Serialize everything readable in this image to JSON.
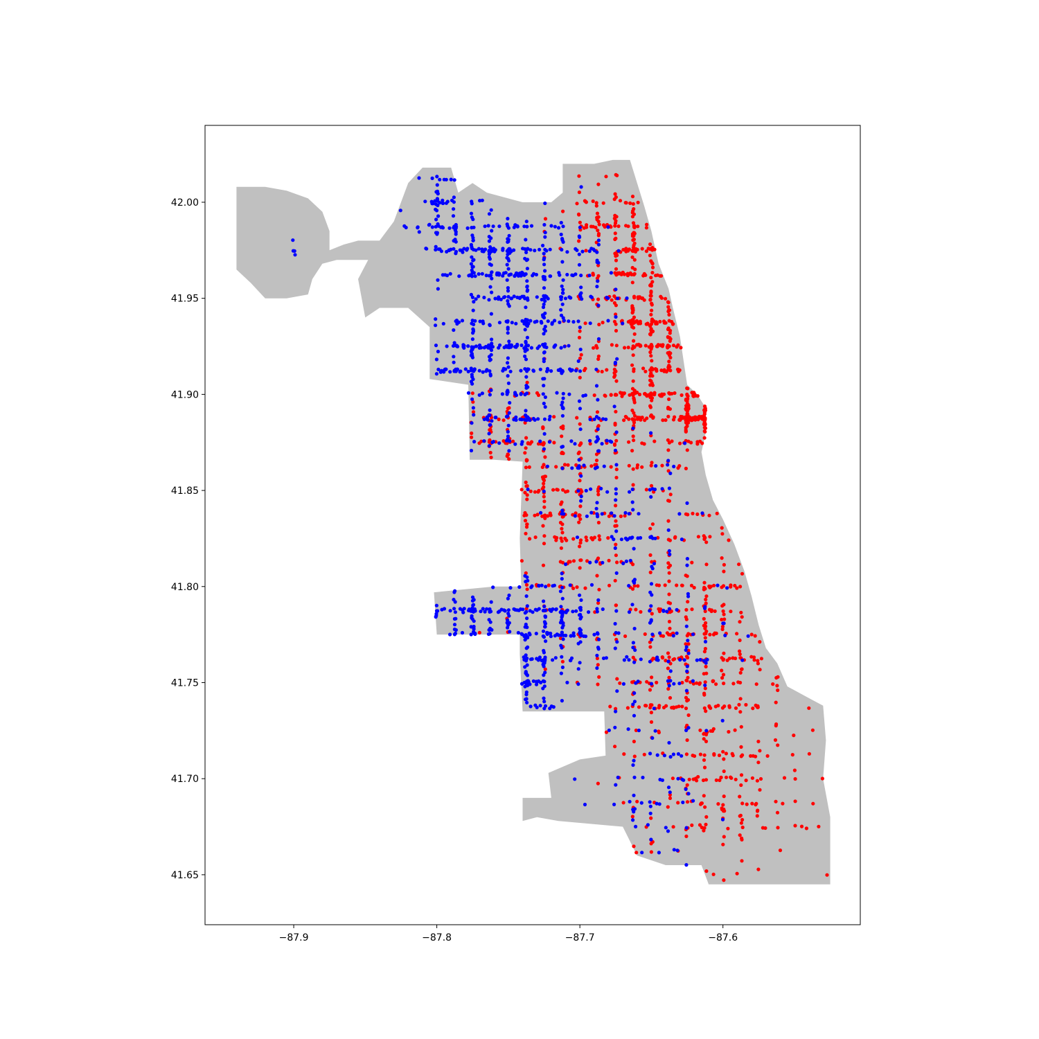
{
  "chart_data": {
    "type": "scatter",
    "title": "",
    "xlabel": "",
    "ylabel": "",
    "xlim": [
      -87.962,
      -87.504
    ],
    "ylim": [
      41.624,
      42.04
    ],
    "xticks": [
      -87.9,
      -87.8,
      -87.7,
      -87.6
    ],
    "xtick_labels": [
      "−87.9",
      "−87.8",
      "−87.7",
      "−87.6"
    ],
    "yticks": [
      41.65,
      41.7,
      41.75,
      41.8,
      41.85,
      41.9,
      41.95,
      42.0
    ],
    "ytick_labels": [
      "41.65",
      "41.70",
      "41.75",
      "41.80",
      "41.85",
      "41.90",
      "41.95",
      "42.00"
    ],
    "grid": false,
    "legend": "none",
    "basemap": {
      "fill_color": "#c0c0c0",
      "outline_lonlat": [
        [
          -87.94,
          42.0
        ],
        [
          -87.94,
          42.008
        ],
        [
          -87.92,
          42.008
        ],
        [
          -87.905,
          42.006
        ],
        [
          -87.89,
          42.002
        ],
        [
          -87.88,
          41.995
        ],
        [
          -87.875,
          41.985
        ],
        [
          -87.875,
          41.975
        ],
        [
          -87.865,
          41.978
        ],
        [
          -87.855,
          41.98
        ],
        [
          -87.84,
          41.98
        ],
        [
          -87.83,
          41.99
        ],
        [
          -87.82,
          42.01
        ],
        [
          -87.81,
          42.018
        ],
        [
          -87.79,
          42.018
        ],
        [
          -87.785,
          42.005
        ],
        [
          -87.775,
          42.01
        ],
        [
          -87.765,
          42.005
        ],
        [
          -87.74,
          42.0
        ],
        [
          -87.72,
          42.0
        ],
        [
          -87.712,
          42.005
        ],
        [
          -87.712,
          42.02
        ],
        [
          -87.69,
          42.02
        ],
        [
          -87.677,
          42.022
        ],
        [
          -87.665,
          42.022
        ],
        [
          -87.66,
          42.01
        ],
        [
          -87.655,
          41.998
        ],
        [
          -87.65,
          41.985
        ],
        [
          -87.645,
          41.968
        ],
        [
          -87.638,
          41.955
        ],
        [
          -87.635,
          41.945
        ],
        [
          -87.63,
          41.93
        ],
        [
          -87.627,
          41.915
        ],
        [
          -87.625,
          41.905
        ],
        [
          -87.618,
          41.9
        ],
        [
          -87.612,
          41.893
        ],
        [
          -87.612,
          41.88
        ],
        [
          -87.615,
          41.87
        ],
        [
          -87.612,
          41.858
        ],
        [
          -87.607,
          41.845
        ],
        [
          -87.6,
          41.835
        ],
        [
          -87.592,
          41.822
        ],
        [
          -87.585,
          41.808
        ],
        [
          -87.58,
          41.795
        ],
        [
          -87.575,
          41.78
        ],
        [
          -87.57,
          41.768
        ],
        [
          -87.562,
          41.76
        ],
        [
          -87.555,
          41.748
        ],
        [
          -87.54,
          41.742
        ],
        [
          -87.53,
          41.738
        ],
        [
          -87.528,
          41.72
        ],
        [
          -87.53,
          41.7
        ],
        [
          -87.525,
          41.68
        ],
        [
          -87.525,
          41.645
        ],
        [
          -87.61,
          41.645
        ],
        [
          -87.615,
          41.655
        ],
        [
          -87.64,
          41.655
        ],
        [
          -87.66,
          41.66
        ],
        [
          -87.67,
          41.675
        ],
        [
          -87.7,
          41.677
        ],
        [
          -87.715,
          41.678
        ],
        [
          -87.73,
          41.68
        ],
        [
          -87.74,
          41.678
        ],
        [
          -87.74,
          41.69
        ],
        [
          -87.72,
          41.69
        ],
        [
          -87.722,
          41.703
        ],
        [
          -87.7,
          41.71
        ],
        [
          -87.682,
          41.712
        ],
        [
          -87.683,
          41.735
        ],
        [
          -87.7,
          41.735
        ],
        [
          -87.74,
          41.735
        ],
        [
          -87.742,
          41.765
        ],
        [
          -87.742,
          41.775
        ],
        [
          -87.765,
          41.775
        ],
        [
          -87.8,
          41.775
        ],
        [
          -87.802,
          41.797
        ],
        [
          -87.76,
          41.8
        ],
        [
          -87.741,
          41.8
        ],
        [
          -87.742,
          41.825
        ],
        [
          -87.74,
          41.865
        ],
        [
          -87.76,
          41.866
        ],
        [
          -87.777,
          41.866
        ],
        [
          -87.778,
          41.905
        ],
        [
          -87.805,
          41.908
        ],
        [
          -87.805,
          41.935
        ],
        [
          -87.82,
          41.945
        ],
        [
          -87.84,
          41.945
        ],
        [
          -87.85,
          41.94
        ],
        [
          -87.855,
          41.96
        ],
        [
          -87.848,
          41.97
        ],
        [
          -87.87,
          41.97
        ],
        [
          -87.88,
          41.968
        ],
        [
          -87.887,
          41.96
        ],
        [
          -87.89,
          41.952
        ],
        [
          -87.905,
          41.95
        ],
        [
          -87.92,
          41.95
        ],
        [
          -87.93,
          41.958
        ],
        [
          -87.94,
          41.965
        ],
        [
          -87.94,
          41.985
        ]
      ]
    },
    "series": [
      {
        "color": "#ff0000",
        "clusters": [
          {
            "center": [
              -87.616,
              41.89
            ],
            "spread": [
              0.008,
              0.006
            ],
            "count": 140,
            "seed": 11
          },
          {
            "center": [
              -87.66,
              41.975
            ],
            "spread": [
              0.012,
              0.02
            ],
            "count": 120,
            "seed": 12
          },
          {
            "center": [
              -87.645,
              41.93
            ],
            "spread": [
              0.014,
              0.018
            ],
            "count": 140,
            "seed": 13
          },
          {
            "center": [
              -87.65,
              41.895
            ],
            "spread": [
              0.02,
              0.014
            ],
            "count": 120,
            "seed": 14
          },
          {
            "center": [
              -87.695,
              41.86
            ],
            "spread": [
              0.03,
              0.02
            ],
            "count": 130,
            "seed": 15
          },
          {
            "center": [
              -87.725,
              41.845
            ],
            "spread": [
              0.015,
              0.015
            ],
            "count": 60,
            "seed": 16
          },
          {
            "center": [
              -87.62,
              41.8
            ],
            "spread": [
              0.02,
              0.03
            ],
            "count": 140,
            "seed": 17
          },
          {
            "center": [
              -87.63,
              41.755
            ],
            "spread": [
              0.035,
              0.018
            ],
            "count": 160,
            "seed": 18
          },
          {
            "center": [
              -87.615,
              41.695
            ],
            "spread": [
              0.03,
              0.03
            ],
            "count": 130,
            "seed": 19
          },
          {
            "center": [
              -87.58,
              41.705
            ],
            "spread": [
              0.025,
              0.03
            ],
            "count": 70,
            "seed": 20
          },
          {
            "center": [
              -87.755,
              41.88
            ],
            "spread": [
              0.015,
              0.012
            ],
            "count": 70,
            "seed": 21
          },
          {
            "center": [
              -87.7,
              41.81
            ],
            "spread": [
              0.025,
              0.02
            ],
            "count": 90,
            "seed": 22
          },
          {
            "center": [
              -87.68,
              41.93
            ],
            "spread": [
              0.02,
              0.02
            ],
            "count": 90,
            "seed": 23
          },
          {
            "center": [
              -87.69,
              41.99
            ],
            "spread": [
              0.02,
              0.012
            ],
            "count": 60,
            "seed": 24
          }
        ]
      },
      {
        "color": "#0000ff",
        "clusters": [
          {
            "center": [
              -87.755,
              41.97
            ],
            "spread": [
              0.018,
              0.012
            ],
            "count": 190,
            "seed": 31
          },
          {
            "center": [
              -87.795,
              41.99
            ],
            "spread": [
              0.01,
              0.014
            ],
            "count": 90,
            "seed": 32
          },
          {
            "center": [
              -87.735,
              41.93
            ],
            "spread": [
              0.02,
              0.015
            ],
            "count": 200,
            "seed": 33
          },
          {
            "center": [
              -87.78,
              41.92
            ],
            "spread": [
              0.014,
              0.01
            ],
            "count": 90,
            "seed": 34
          },
          {
            "center": [
              -87.755,
              41.89
            ],
            "spread": [
              0.015,
              0.012
            ],
            "count": 70,
            "seed": 35
          },
          {
            "center": [
              -87.7,
              41.88
            ],
            "spread": [
              0.02,
              0.02
            ],
            "count": 80,
            "seed": 36
          },
          {
            "center": [
              -87.72,
              41.78
            ],
            "spread": [
              0.02,
              0.012
            ],
            "count": 170,
            "seed": 37
          },
          {
            "center": [
              -87.74,
              41.75
            ],
            "spread": [
              0.015,
              0.01
            ],
            "count": 80,
            "seed": 38
          },
          {
            "center": [
              -87.78,
              41.785
            ],
            "spread": [
              0.018,
              0.008
            ],
            "count": 80,
            "seed": 39
          },
          {
            "center": [
              -87.67,
              41.83
            ],
            "spread": [
              0.025,
              0.02
            ],
            "count": 90,
            "seed": 40
          },
          {
            "center": [
              -87.64,
              41.77
            ],
            "spread": [
              0.025,
              0.02
            ],
            "count": 90,
            "seed": 41
          },
          {
            "center": [
              -87.65,
              41.69
            ],
            "spread": [
              0.02,
              0.025
            ],
            "count": 60,
            "seed": 42
          },
          {
            "center": [
              -87.905,
              41.975
            ],
            "spread": [
              0.004,
              0.004
            ],
            "count": 4,
            "seed": 43
          },
          {
            "center": [
              -87.7,
              41.96
            ],
            "spread": [
              0.015,
              0.02
            ],
            "count": 70,
            "seed": 44
          }
        ]
      }
    ]
  }
}
